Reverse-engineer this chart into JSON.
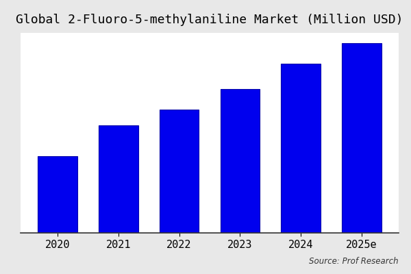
{
  "title": "Global 2-Fluoro-5-methylaniline Market (Million USD)",
  "categories": [
    "2020",
    "2021",
    "2022",
    "2023",
    "2024",
    "2025e"
  ],
  "values": [
    30,
    42,
    48,
    56,
    66,
    74
  ],
  "bar_color": "#0000EE",
  "bar_edgecolor": "#0000AA",
  "plot_bg_color": "#ffffff",
  "fig_bg_color": "#e8e8e8",
  "title_fontsize": 13,
  "tick_fontsize": 11,
  "source_text": "Source: Prof Research",
  "source_fontsize": 8.5,
  "ylim": [
    0,
    78
  ],
  "bar_width": 0.65,
  "figsize": [
    6.0,
    4.0
  ],
  "dpi": 100
}
